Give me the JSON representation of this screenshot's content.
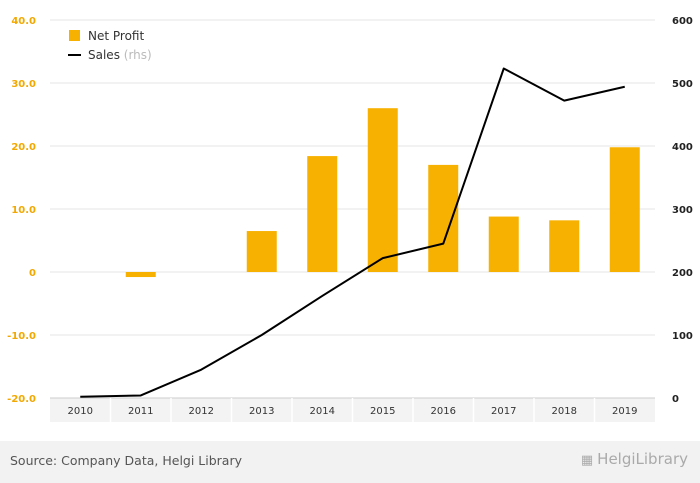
{
  "chart_data": {
    "type": "bar",
    "categories": [
      "2010",
      "2011",
      "2012",
      "2013",
      "2014",
      "2015",
      "2016",
      "2017",
      "2018",
      "2019"
    ],
    "series": [
      {
        "name": "Net Profit",
        "kind": "bar",
        "axis": "left",
        "color": "#f7b100",
        "values": [
          0,
          -0.8,
          0,
          6.5,
          18.4,
          26.0,
          17.0,
          8.8,
          8.2,
          19.8
        ]
      },
      {
        "name": "Sales",
        "kind": "line",
        "axis": "right",
        "color": "#000000",
        "values": [
          2,
          4,
          45,
          100,
          162,
          222,
          245,
          523,
          472,
          494
        ]
      }
    ],
    "left_axis": {
      "ylim": [
        -20,
        40
      ],
      "ticks": [
        "-20.0",
        "-10.0",
        "0",
        "10.0",
        "20.0",
        "30.0",
        "40.0"
      ],
      "tick_values": [
        -20,
        -10,
        0,
        10,
        20,
        30,
        40
      ],
      "color": "#f2a800"
    },
    "right_axis": {
      "ylim": [
        0,
        600
      ],
      "ticks": [
        "0",
        "100",
        "200",
        "300",
        "400",
        "500",
        "600"
      ],
      "tick_values": [
        0,
        100,
        200,
        300,
        400,
        500,
        600
      ]
    },
    "legend": {
      "position": "top-left",
      "items": [
        {
          "label": "Net Profit",
          "suffix": ""
        },
        {
          "label": "Sales",
          "suffix": "(rhs)"
        }
      ]
    },
    "grid": true
  },
  "footer": {
    "source": "Source: Company Data, Helgi Library",
    "brand": "HelgiLibrary",
    "brand_icon": "factory-icon"
  }
}
